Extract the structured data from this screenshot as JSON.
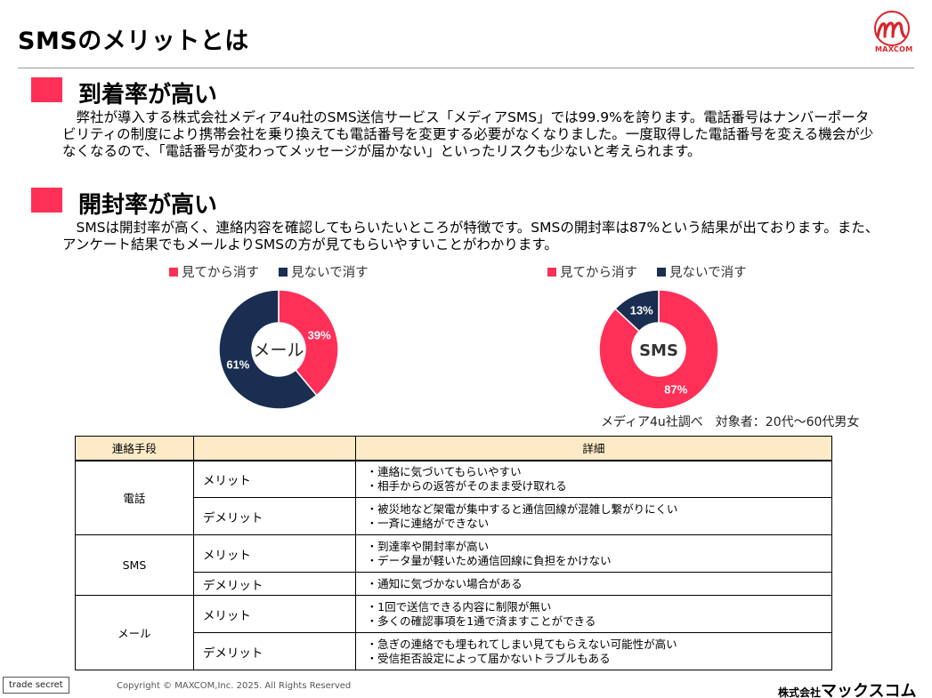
{
  "header": {
    "title": "SMSのメリットとは",
    "logo_text": "MAXCOM"
  },
  "sections": [
    {
      "heading": "到着率が高い",
      "body": "　弊社が導入する株式会社メディア4u社のSMS送信サービス「メディアSMS」では99.9%を誇ります。電話番号はナンバーポータビリティの制度により携帯会社を乗り換えても電話番号を変更する必要がなくなりました。一度取得した電話番号を変える機会が少なくなるので、「電話番号が変わってメッセージが届かない」といったリスクも少ないと考えられます。"
    },
    {
      "heading": "開封率が高い",
      "body": "　SMSは開封率が高く、連絡内容を確認してもらいたいところが特徴です。SMSの開封率は87%という結果が出ております。また、アンケート結果でもメールよりSMSの方が見てもらいやすいことがわかります。"
    }
  ],
  "colors": {
    "accent": "#ff3058",
    "navy": "#1a2e52",
    "table_header": "#fdebc8"
  },
  "chart_data": [
    {
      "type": "pie",
      "center_label": "メール",
      "legend": [
        "見てから消す",
        "見ないで消す"
      ],
      "values": [
        39,
        61
      ],
      "labels": [
        "39%",
        "61%"
      ],
      "colors": [
        "#ff3058",
        "#1a2e52"
      ]
    },
    {
      "type": "pie",
      "center_label": "SMS",
      "legend": [
        "見てから消す",
        "見ないで消す"
      ],
      "values": [
        87,
        13
      ],
      "labels": [
        "87%",
        "13%"
      ],
      "colors": [
        "#ff3058",
        "#1a2e52"
      ]
    }
  ],
  "source_note": "メディア4u社調べ　対象者：20代〜60代男女",
  "table": {
    "headers": [
      "連絡手段",
      "",
      "詳細"
    ],
    "groups": [
      {
        "method": "電話",
        "rows": [
          {
            "kind": "メリット",
            "details": [
              "・連絡に気づいてもらいやすい",
              "・相手からの返答がそのまま受け取れる"
            ]
          },
          {
            "kind": "デメリット",
            "details": [
              "・被災地など架電が集中すると通信回線が混雑し繋がりにくい",
              "・一斉に連絡ができない"
            ]
          }
        ]
      },
      {
        "method": "SMS",
        "rows": [
          {
            "kind": "メリット",
            "details": [
              "・到達率や開封率が高い",
              "・データ量が軽いため通信回線に負担をかけない"
            ]
          },
          {
            "kind": "デメリット",
            "details": [
              "・通知に気づかない場合がある"
            ]
          }
        ]
      },
      {
        "method": "メール",
        "rows": [
          {
            "kind": "メリット",
            "details": [
              "・1回で送信できる内容に制限が無い",
              "・多くの確認事項を1通で済ますことができる"
            ]
          },
          {
            "kind": "デメリット",
            "details": [
              "・急ぎの連絡でも埋もれてしまい見てもらえない可能性が高い",
              "・受信拒否設定によって届かないトラブルもある"
            ]
          }
        ]
      }
    ]
  },
  "footer": {
    "badge": "trade secret",
    "copyright": "Copyright © MAXCOM,Inc. 2025. All Rights Reserved",
    "company_prefix": "株式会社",
    "company_name": "マックスコム"
  }
}
